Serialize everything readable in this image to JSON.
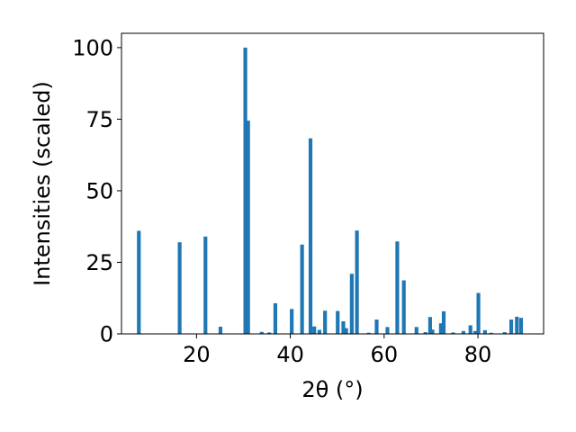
{
  "chart_data": {
    "type": "bar",
    "title": "",
    "xlabel": "2θ (°)",
    "ylabel": "Intensities (scaled)",
    "xlim": [
      4,
      94
    ],
    "ylim": [
      0,
      105
    ],
    "xticks": [
      20,
      40,
      60,
      80
    ],
    "yticks": [
      0,
      25,
      50,
      75,
      100
    ],
    "grid": false,
    "legend": "none",
    "bar_color": "#1f77b4",
    "bar_width": 0.8,
    "x": [
      7.7,
      16.4,
      21.9,
      25.1,
      30.4,
      31.0,
      33.9,
      35.5,
      36.8,
      40.3,
      42.5,
      44.3,
      45.1,
      46.2,
      47.4,
      50.1,
      51.3,
      51.9,
      53.1,
      54.2,
      56.7,
      58.4,
      60.7,
      62.8,
      64.2,
      66.9,
      68.8,
      69.8,
      70.3,
      72.1,
      72.7,
      74.7,
      76.9,
      78.4,
      79.4,
      80.1,
      81.5,
      82.8,
      85.7,
      87.1,
      88.3,
      89.2
    ],
    "values": [
      36,
      32,
      34,
      2.5,
      100,
      74.5,
      0.7,
      0.5,
      10.7,
      8.7,
      31.2,
      68.3,
      2.6,
      1.4,
      8.1,
      8.0,
      4.4,
      2.0,
      21.0,
      36.1,
      0.4,
      5.0,
      2.4,
      32.3,
      18.7,
      2.4,
      0.6,
      5.9,
      1.5,
      3.7,
      7.9,
      0.5,
      1.0,
      3.0,
      1.0,
      14.3,
      1.3,
      0.4,
      0.6,
      5.0,
      6.0,
      5.6
    ]
  }
}
